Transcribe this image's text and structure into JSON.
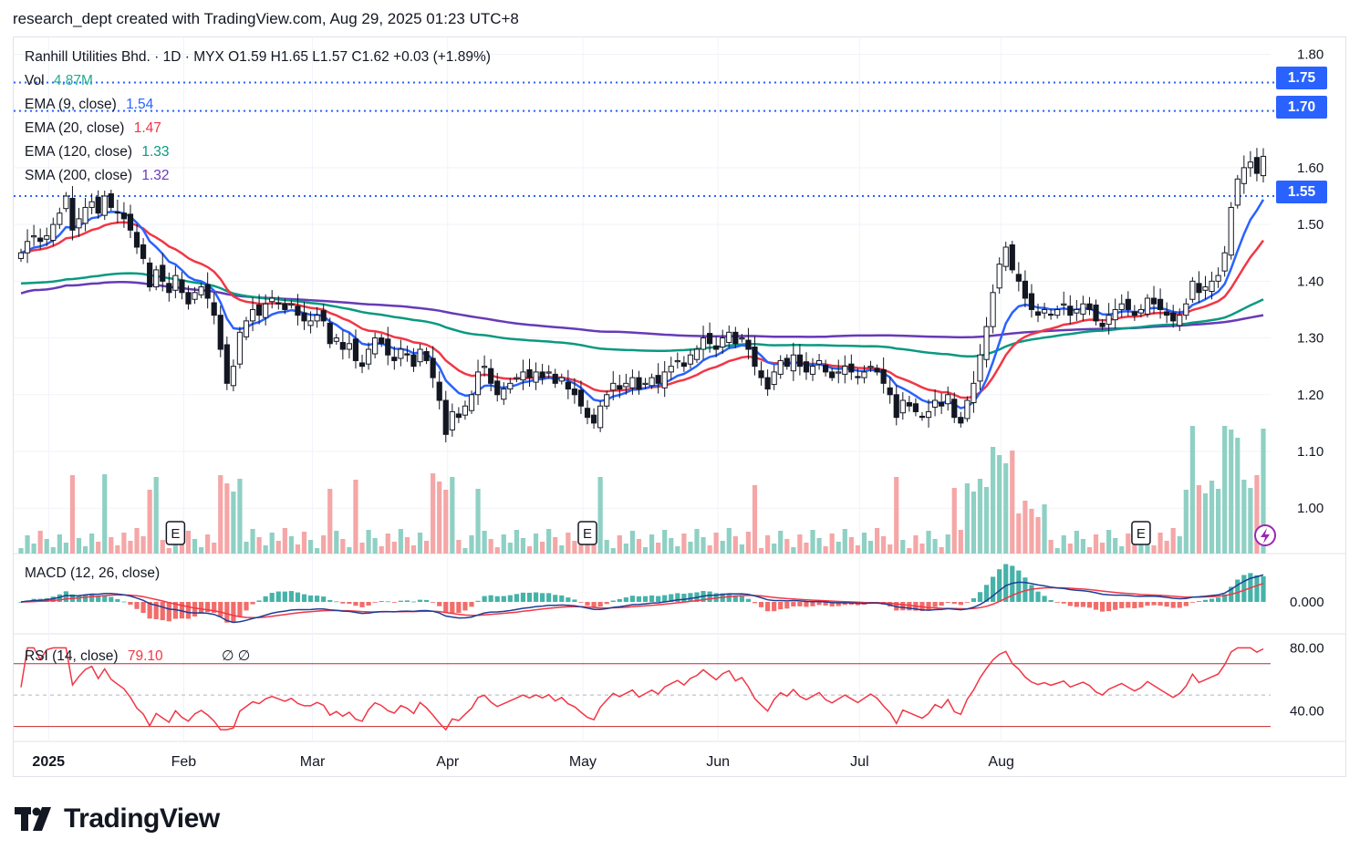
{
  "header": {
    "text": "research_dept created with TradingView.com, Aug 29, 2025 01:23 UTC+8"
  },
  "logo": {
    "text": "TradingView"
  },
  "legend": {
    "symbol_line": "Ranhill Utilities Bhd. · 1D · MYX  O1.59  H1.65  L1.57  C1.62  +0.03 (+1.89%)",
    "vol_label": "Vol",
    "vol_value": "4.87M",
    "ema9_label": "EMA (9, close)",
    "ema9_value": "1.54",
    "ema20_label": "EMA (20, close)",
    "ema20_value": "1.47",
    "ema120_label": "EMA (120, close)",
    "ema120_value": "1.33",
    "sma200_label": "SMA (200, close)",
    "sma200_value": "1.32",
    "macd_label": "MACD (12, 26, close)",
    "rsi_label": "RSI (14, close)",
    "rsi_value": "79.10",
    "rsi_extra": "∅  ∅"
  },
  "price_badges": [
    "1.75",
    "1.70",
    "1.55"
  ],
  "colors": {
    "up": "#089981",
    "down": "#131722",
    "vol_up": "#8fd0c4",
    "vol_down": "#f5a6a6",
    "ema9": "#2962ff",
    "ema20": "#f23645",
    "ema120": "#089981",
    "sma200": "#673ab7",
    "macd": "#1c3e94",
    "signal": "#f23645",
    "rsi": "#f23645",
    "hline": "#2962ff"
  },
  "chart_data": {
    "type": "candlestick",
    "symbol": "Ranhill Utilities Bhd.",
    "timeframe": "1D",
    "exchange": "MYX",
    "x_labels": [
      "2025",
      "Feb",
      "Mar",
      "Apr",
      "May",
      "Jun",
      "Jul",
      "Aug"
    ],
    "price_axis_ticks": [
      "1.80",
      "1.60",
      "1.50",
      "1.40",
      "1.30",
      "1.20",
      "1.10",
      "1.00"
    ],
    "price_range": [
      0.92,
      1.82
    ],
    "horizontal_lines": [
      1.75,
      1.7,
      1.55
    ],
    "earnings_markers": [
      {
        "label": "E",
        "month": "Feb"
      },
      {
        "label": "E",
        "month": "May"
      },
      {
        "label": "E",
        "month": "Aug"
      }
    ],
    "closes": [
      1.45,
      1.47,
      1.48,
      1.47,
      1.48,
      1.5,
      1.52,
      1.55,
      1.49,
      1.51,
      1.53,
      1.54,
      1.52,
      1.55,
      1.53,
      1.52,
      1.51,
      1.49,
      1.46,
      1.44,
      1.39,
      1.42,
      1.4,
      1.38,
      1.41,
      1.38,
      1.36,
      1.38,
      1.39,
      1.37,
      1.34,
      1.28,
      1.22,
      1.25,
      1.31,
      1.33,
      1.35,
      1.34,
      1.36,
      1.37,
      1.36,
      1.35,
      1.36,
      1.34,
      1.33,
      1.33,
      1.34,
      1.33,
      1.29,
      1.3,
      1.28,
      1.29,
      1.26,
      1.25,
      1.28,
      1.3,
      1.29,
      1.27,
      1.26,
      1.28,
      1.27,
      1.25,
      1.28,
      1.26,
      1.23,
      1.19,
      1.13,
      1.17,
      1.16,
      1.18,
      1.2,
      1.24,
      1.25,
      1.22,
      1.2,
      1.21,
      1.22,
      1.23,
      1.24,
      1.23,
      1.24,
      1.23,
      1.24,
      1.22,
      1.23,
      1.21,
      1.2,
      1.18,
      1.16,
      1.15,
      1.18,
      1.2,
      1.22,
      1.21,
      1.22,
      1.23,
      1.21,
      1.22,
      1.23,
      1.22,
      1.24,
      1.25,
      1.26,
      1.25,
      1.27,
      1.28,
      1.3,
      1.29,
      1.28,
      1.3,
      1.31,
      1.29,
      1.3,
      1.28,
      1.25,
      1.23,
      1.21,
      1.24,
      1.26,
      1.25,
      1.27,
      1.25,
      1.24,
      1.25,
      1.26,
      1.24,
      1.23,
      1.24,
      1.25,
      1.24,
      1.23,
      1.24,
      1.25,
      1.24,
      1.22,
      1.2,
      1.16,
      1.19,
      1.18,
      1.17,
      1.16,
      1.17,
      1.19,
      1.18,
      1.2,
      1.16,
      1.15,
      1.19,
      1.22,
      1.27,
      1.32,
      1.38,
      1.43,
      1.46,
      1.42,
      1.4,
      1.37,
      1.35,
      1.34,
      1.35,
      1.34,
      1.35,
      1.36,
      1.34,
      1.35,
      1.36,
      1.35,
      1.33,
      1.32,
      1.34,
      1.35,
      1.36,
      1.35,
      1.34,
      1.35,
      1.37,
      1.36,
      1.35,
      1.34,
      1.33,
      1.34,
      1.36,
      1.4,
      1.38,
      1.39,
      1.4,
      1.41,
      1.45,
      1.53,
      1.58,
      1.6,
      1.61,
      1.59,
      1.62
    ],
    "rsi_levels": [
      70,
      50,
      30
    ],
    "rsi_axis_ticks": [
      "80.00",
      "40.00"
    ],
    "macd_axis_ticks": [
      "0.000"
    ]
  }
}
